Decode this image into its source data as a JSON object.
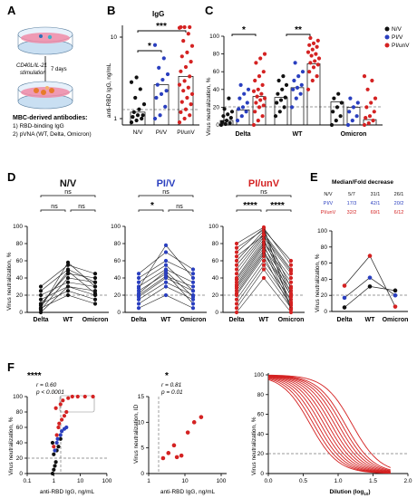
{
  "panelA": {
    "letter": "A",
    "step_label_1": "CD40L/IL-21",
    "step_label_2": "stimulation",
    "days_label": "7 days",
    "title": "MBC-derived antibodies:",
    "item1": "1) RBD-binding IgG",
    "item2": "2) pVNA (WT, Delta, Omicron)"
  },
  "colors": {
    "nv": "#111111",
    "piv": "#2a3fbf",
    "piunv": "#d42222",
    "ns": "#000000"
  },
  "groups": [
    "N/V",
    "PI/V",
    "PI/unV"
  ],
  "chart_data": [
    {
      "panel": "B",
      "type": "scatter",
      "title": "IgG",
      "ylabel": "anti-RBD IgG, ng/mL",
      "yscale": "log",
      "ytick_labels": [
        "1",
        "10"
      ],
      "categories": [
        "N/V",
        "PI/V",
        "PI/unV"
      ],
      "significance": [
        {
          "pair": [
            "N/V",
            "PI/V"
          ],
          "label": "*"
        },
        {
          "pair": [
            "N/V",
            "PI/unV"
          ],
          "label": "***"
        }
      ],
      "series": [
        {
          "group": "N/V",
          "values": [
            0.9,
            0.95,
            1.0,
            1.05,
            1.1,
            1.1,
            1.2,
            1.3,
            1.5,
            1.8,
            2.3,
            2.8,
            3.2
          ]
        },
        {
          "group": "PI/V",
          "values": [
            1.0,
            1.1,
            1.4,
            1.8,
            2.0,
            2.2,
            2.6,
            3.0,
            3.5,
            4.2,
            5.5,
            8.0
          ]
        },
        {
          "group": "PI/unV",
          "values": [
            0.9,
            1.0,
            1.1,
            1.2,
            1.3,
            1.5,
            1.6,
            1.8,
            2.0,
            2.2,
            2.4,
            2.6,
            2.9,
            3.3,
            3.8,
            4.3,
            5.0,
            5.8,
            6.5,
            7.8,
            9.0,
            11.0,
            13.0,
            16.0,
            22.0,
            30.0
          ]
        }
      ]
    },
    {
      "panel": "C",
      "type": "scatter",
      "ylabel": "Virus neutralization, %",
      "ylim": [
        0,
        100
      ],
      "yticks": [
        0,
        20,
        40,
        60,
        80,
        100
      ],
      "threshold": 20,
      "categories": [
        "Delta",
        "WT",
        "Omicron"
      ],
      "legend": [
        "N/V",
        "PI/V",
        "PI/unV"
      ],
      "significance": [
        {
          "category": "Delta",
          "label": "*"
        },
        {
          "category": "WT",
          "label": "**"
        }
      ],
      "series": [
        {
          "category": "Delta",
          "group": "N/V",
          "median": 5,
          "values": [
            0,
            1,
            2,
            3,
            5,
            8,
            10,
            12,
            15,
            18,
            30
          ]
        },
        {
          "category": "Delta",
          "group": "PI/V",
          "median": 17,
          "values": [
            5,
            10,
            15,
            18,
            20,
            25,
            30,
            35,
            40,
            45
          ]
        },
        {
          "category": "Delta",
          "group": "PI/unV",
          "median": 32,
          "values": [
            0,
            5,
            10,
            15,
            20,
            22,
            25,
            28,
            30,
            32,
            35,
            38,
            40,
            45,
            50,
            55,
            60,
            70,
            75,
            80
          ]
        },
        {
          "category": "WT",
          "group": "N/V",
          "median": 31,
          "values": [
            10,
            15,
            20,
            25,
            28,
            31,
            35,
            40,
            45,
            50,
            55
          ]
        },
        {
          "category": "WT",
          "group": "PI/V",
          "median": 42,
          "values": [
            20,
            30,
            35,
            40,
            42,
            45,
            50,
            55,
            60,
            70
          ]
        },
        {
          "category": "WT",
          "group": "PI/unV",
          "median": 69,
          "values": [
            40,
            50,
            55,
            60,
            65,
            68,
            70,
            72,
            75,
            78,
            80,
            82,
            85,
            88,
            90,
            92,
            95,
            98
          ]
        },
        {
          "category": "Omicron",
          "group": "N/V",
          "median": 26,
          "values": [
            0,
            5,
            10,
            15,
            20,
            25,
            30,
            35
          ]
        },
        {
          "category": "Omicron",
          "group": "PI/V",
          "median": 20,
          "values": [
            0,
            5,
            10,
            15,
            20,
            25,
            30
          ]
        },
        {
          "category": "Omicron",
          "group": "PI/unV",
          "median": 6,
          "values": [
            0,
            2,
            5,
            8,
            10,
            15,
            20,
            25,
            30,
            40,
            50,
            55
          ]
        }
      ]
    },
    {
      "panel": "D",
      "type": "line",
      "ylabel": "Virus neutralization, %",
      "ylim": [
        0,
        100
      ],
      "yticks": [
        0,
        20,
        40,
        60,
        80,
        100
      ],
      "threshold": 20,
      "categories": [
        "Delta",
        "WT",
        "Omicron"
      ],
      "subplots": [
        {
          "title": "N/V",
          "group": "N/V",
          "significance": [
            {
              "pair": [
                "Delta",
                "Omicron"
              ],
              "label": "ns"
            },
            {
              "pair": [
                "Delta",
                "WT"
              ],
              "label": "ns"
            },
            {
              "pair": [
                "WT",
                "Omicron"
              ],
              "label": "ns"
            }
          ],
          "lines": [
            [
              5,
              20,
              10
            ],
            [
              10,
              25,
              15
            ],
            [
              15,
              30,
              20
            ],
            [
              0,
              30,
              25
            ],
            [
              20,
              35,
              30
            ],
            [
              3,
              40,
              35
            ],
            [
              10,
              45,
              40
            ],
            [
              25,
              50,
              35
            ],
            [
              30,
              55,
              45
            ],
            [
              5,
              58,
              30
            ],
            [
              8,
              48,
              22
            ]
          ]
        },
        {
          "title": "PI/V",
          "group": "PI/V",
          "significance": [
            {
              "pair": [
                "Delta",
                "Omicron"
              ],
              "label": "ns"
            },
            {
              "pair": [
                "Delta",
                "WT"
              ],
              "label": "*"
            },
            {
              "pair": [
                "WT",
                "Omicron"
              ],
              "label": "ns"
            }
          ],
          "lines": [
            [
              5,
              20,
              5
            ],
            [
              10,
              30,
              15
            ],
            [
              15,
              35,
              20
            ],
            [
              18,
              40,
              25
            ],
            [
              20,
              42,
              30
            ],
            [
              25,
              45,
              10
            ],
            [
              30,
              50,
              35
            ],
            [
              35,
              55,
              25
            ],
            [
              40,
              60,
              45
            ],
            [
              45,
              70,
              50
            ],
            [
              28,
              78,
              40
            ],
            [
              22,
              48,
              18
            ]
          ]
        },
        {
          "title": "PI/unV",
          "group": "PI/unV",
          "significance": [
            {
              "pair": [
                "Delta",
                "Omicron"
              ],
              "label": "ns"
            },
            {
              "pair": [
                "Delta",
                "WT"
              ],
              "label": "****"
            },
            {
              "pair": [
                "WT",
                "Omicron"
              ],
              "label": "****"
            }
          ],
          "lines": [
            [
              0,
              40,
              0
            ],
            [
              5,
              50,
              5
            ],
            [
              10,
              55,
              10
            ],
            [
              15,
              60,
              15
            ],
            [
              20,
              65,
              5
            ],
            [
              22,
              68,
              20
            ],
            [
              25,
              70,
              25
            ],
            [
              28,
              72,
              8
            ],
            [
              30,
              75,
              30
            ],
            [
              32,
              78,
              12
            ],
            [
              35,
              80,
              35
            ],
            [
              38,
              82,
              40
            ],
            [
              40,
              85,
              18
            ],
            [
              45,
              88,
              45
            ],
            [
              50,
              90,
              22
            ],
            [
              55,
              92,
              50
            ],
            [
              60,
              95,
              28
            ],
            [
              70,
              98,
              55
            ],
            [
              75,
              96,
              60
            ],
            [
              80,
              99,
              3
            ],
            [
              65,
              90,
              48
            ]
          ]
        }
      ]
    },
    {
      "panel": "E",
      "type": "line",
      "table_title": "Median/Fold decrease",
      "table_rows": [
        {
          "group": "N/V",
          "cells": [
            "5/7",
            "31/1",
            "26/1"
          ]
        },
        {
          "group": "PI/V",
          "cells": [
            "17/3",
            "42/1",
            "20/2"
          ]
        },
        {
          "group": "PI/unV",
          "cells": [
            "32/2",
            "69/1",
            "6/12"
          ]
        }
      ],
      "ylabel": "Virus neutralization, %",
      "ylim": [
        0,
        100
      ],
      "yticks": [
        0,
        20,
        40,
        60,
        80,
        100
      ],
      "threshold": 20,
      "categories": [
        "Delta",
        "WT",
        "Omicron"
      ],
      "series": [
        {
          "group": "N/V",
          "values": [
            5,
            31,
            26
          ]
        },
        {
          "group": "PI/V",
          "values": [
            17,
            42,
            20
          ]
        },
        {
          "group": "PI/unV",
          "values": [
            32,
            69,
            6
          ]
        }
      ]
    },
    {
      "panel": "F1",
      "type": "scatter",
      "stars": "****",
      "r_label": "r = 0.60",
      "p_label": "p < 0.0001",
      "xlabel": "anti-RBD IgG, ng/mL",
      "ylabel": "Virus neutralization, %",
      "xscale": "log",
      "xtick_labels": [
        "0.1",
        "1",
        "10",
        "100"
      ],
      "ylim": [
        0,
        100
      ],
      "yticks": [
        0,
        20,
        40,
        60,
        80,
        100
      ],
      "threshold": 20,
      "series": [
        {
          "group": "N/V",
          "points": [
            [
              0.9,
              0
            ],
            [
              1.0,
              5
            ],
            [
              1.1,
              10
            ],
            [
              1.2,
              15
            ],
            [
              1.0,
              25
            ],
            [
              1.3,
              30
            ],
            [
              1.5,
              35
            ],
            [
              0.9,
              40
            ],
            [
              1.8,
              45
            ]
          ]
        },
        {
          "group": "PI/V",
          "points": [
            [
              1.1,
              30
            ],
            [
              1.4,
              45
            ],
            [
              1.8,
              50
            ],
            [
              2.0,
              55
            ],
            [
              2.5,
              58
            ],
            [
              3.0,
              60
            ],
            [
              1.3,
              40
            ]
          ]
        },
        {
          "group": "PI/unV",
          "points": [
            [
              1.0,
              35
            ],
            [
              1.3,
              50
            ],
            [
              1.5,
              60
            ],
            [
              1.6,
              65
            ],
            [
              2.0,
              70
            ],
            [
              2.5,
              75
            ],
            [
              3.0,
              80
            ],
            [
              1.2,
              85
            ],
            [
              1.8,
              90
            ],
            [
              2.2,
              95
            ],
            [
              3.5,
              98
            ],
            [
              5.0,
              100
            ],
            [
              8.0,
              100
            ],
            [
              15.0,
              100
            ],
            [
              30.0,
              100
            ]
          ]
        }
      ]
    },
    {
      "panel": "F2",
      "type": "scatter",
      "stars": "*",
      "r_label": "r = 0.81",
      "p_label": "p = 0.01",
      "xlabel": "anti-RBD IgG, ng/mL",
      "ylabel": "Virus neutralization, ID",
      "xscale": "log",
      "xtick_labels": [
        "1",
        "10",
        "100"
      ],
      "ylim": [
        0,
        15
      ],
      "yticks": [
        0,
        5,
        10,
        15
      ],
      "series": [
        {
          "group": "PI/unV",
          "points": [
            [
              2.5,
              3.0
            ],
            [
              3.5,
              4.0
            ],
            [
              5.0,
              5.5
            ],
            [
              6.0,
              3.2
            ],
            [
              8.0,
              3.5
            ],
            [
              12.0,
              8.0
            ],
            [
              18.0,
              10.0
            ],
            [
              28.0,
              11.0
            ]
          ]
        }
      ]
    },
    {
      "panel": "F3",
      "type": "line",
      "xlabel": "Dilution (log",
      "xlabel_sub": "10",
      "xlabel_end": ")",
      "xlim": [
        0,
        2
      ],
      "xtick_labels": [
        "0.0",
        "0.5",
        "1.0",
        "1.5",
        "2.0"
      ],
      "ylim": [
        0,
        100
      ],
      "yticks": [
        0,
        20,
        40,
        60,
        80,
        100
      ],
      "threshold": 20,
      "curves_ic50": [
        0.6,
        0.65,
        0.7,
        0.75,
        0.8,
        0.85,
        0.9,
        0.95,
        1.0,
        1.05,
        1.1,
        1.2
      ]
    }
  ]
}
